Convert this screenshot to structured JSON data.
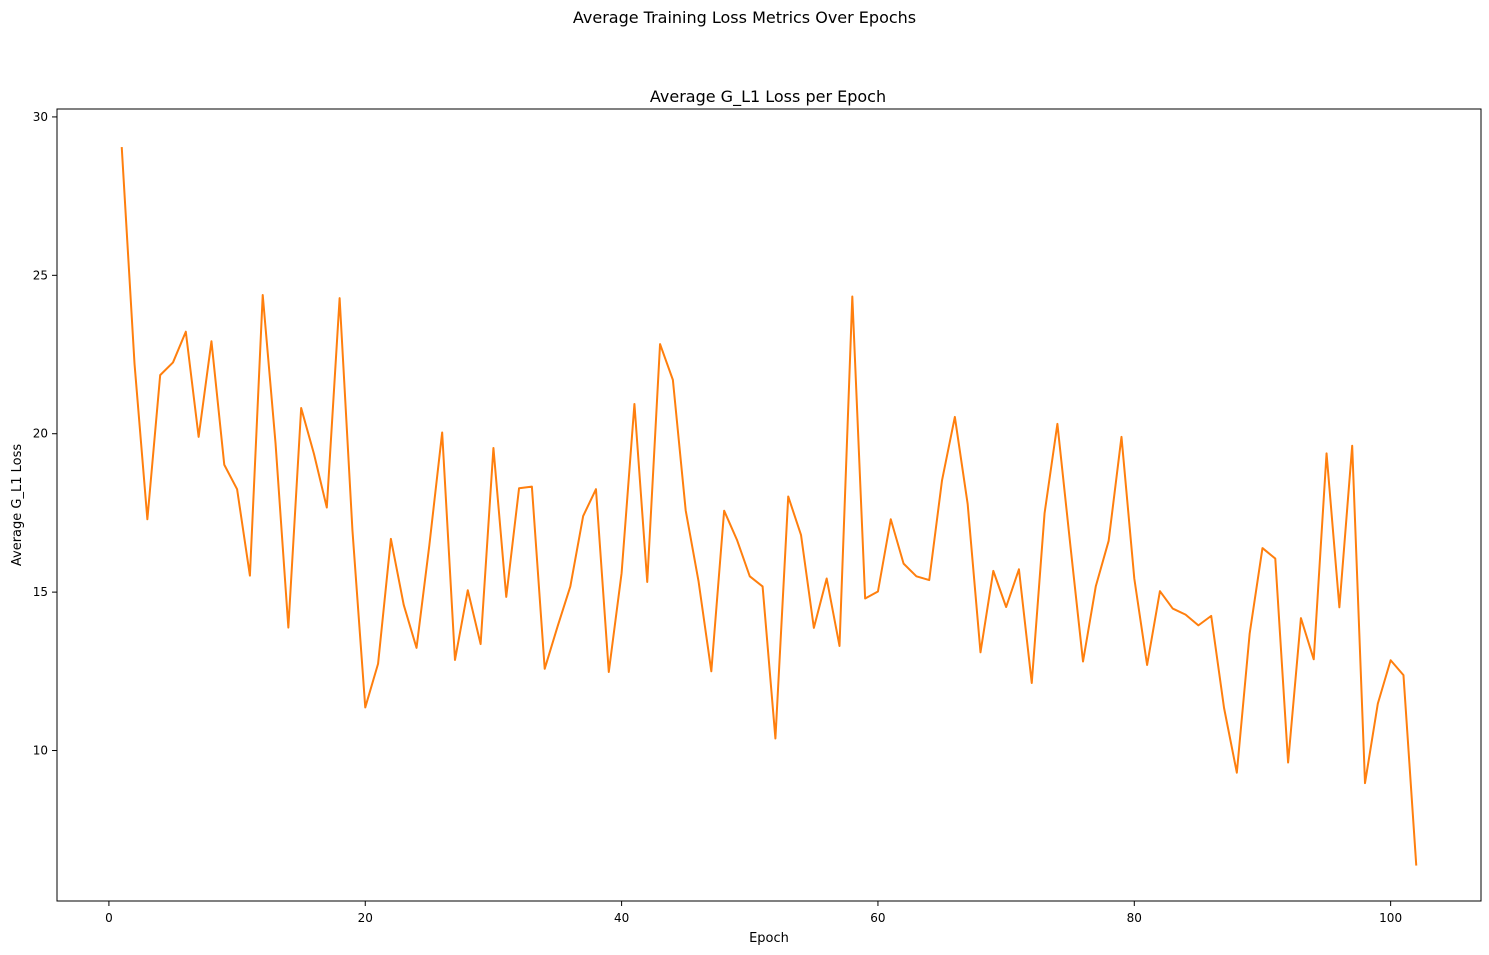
{
  "chart_data": {
    "type": "line",
    "suptitle": "Average Training Loss Metrics Over Epochs",
    "title": "Average G_L1 Loss per Epoch",
    "xlabel": "Epoch",
    "ylabel": "Average G_L1 Loss",
    "xlim": [
      -4.05,
      107.05
    ],
    "ylim": [
      5.25,
      30.25
    ],
    "xticks": [
      0,
      20,
      40,
      60,
      80,
      100
    ],
    "yticks": [
      10,
      15,
      20,
      25,
      30
    ],
    "grid": false,
    "line_color": "#ff7f0e",
    "series": [
      {
        "x": [
          1,
          2,
          3,
          4,
          5,
          6,
          7,
          8,
          9,
          10,
          11,
          12,
          13,
          14,
          15,
          16,
          17,
          18,
          19,
          20,
          21,
          22,
          23,
          24,
          25,
          26,
          27,
          28,
          29,
          30,
          31,
          32,
          33,
          34,
          35,
          36,
          37,
          38,
          39,
          40,
          41,
          42,
          43,
          44,
          45,
          46,
          47,
          48,
          49,
          50,
          51,
          52,
          53,
          54,
          55,
          56,
          57,
          58,
          59,
          60,
          61,
          62,
          63,
          64,
          65,
          66,
          67,
          68,
          69,
          70,
          71,
          72,
          73,
          74,
          75,
          76,
          77,
          78,
          79,
          80,
          81,
          82,
          83,
          84,
          85,
          86,
          87,
          88,
          89,
          90,
          91,
          92,
          93,
          94,
          95,
          96,
          97,
          98,
          99,
          100,
          101,
          102
        ],
        "values": [
          29.05,
          22.2,
          17.3,
          21.85,
          22.25,
          23.22,
          19.9,
          22.92,
          19.02,
          18.25,
          15.52,
          24.38,
          19.7,
          13.88,
          20.81,
          19.36,
          17.67,
          24.28,
          16.95,
          11.36,
          12.74,
          16.68,
          14.6,
          13.24,
          16.48,
          20.04,
          12.86,
          15.06,
          13.36,
          19.55,
          14.85,
          18.28,
          18.33,
          12.58,
          13.91,
          15.18,
          17.4,
          18.25,
          12.48,
          15.6,
          20.94,
          15.32,
          22.83,
          21.7,
          17.58,
          15.35,
          12.5,
          17.57,
          16.65,
          15.5,
          15.18,
          10.38,
          18.02,
          16.8,
          13.87,
          15.43,
          13.3,
          24.33,
          14.8,
          15.02,
          17.3,
          15.9,
          15.5,
          15.38,
          18.53,
          20.53,
          17.78,
          13.1,
          15.67,
          14.53,
          15.72,
          12.13,
          17.49,
          20.31,
          16.52,
          12.81,
          15.19,
          16.62,
          19.9,
          15.43,
          12.7,
          15.03,
          14.48,
          14.29,
          13.95,
          14.25,
          11.35,
          9.3,
          13.69,
          16.39,
          16.06,
          9.62,
          14.18,
          12.88,
          19.38,
          14.52,
          19.62,
          8.97,
          11.48,
          12.85,
          12.38,
          6.37
        ]
      }
    ]
  }
}
